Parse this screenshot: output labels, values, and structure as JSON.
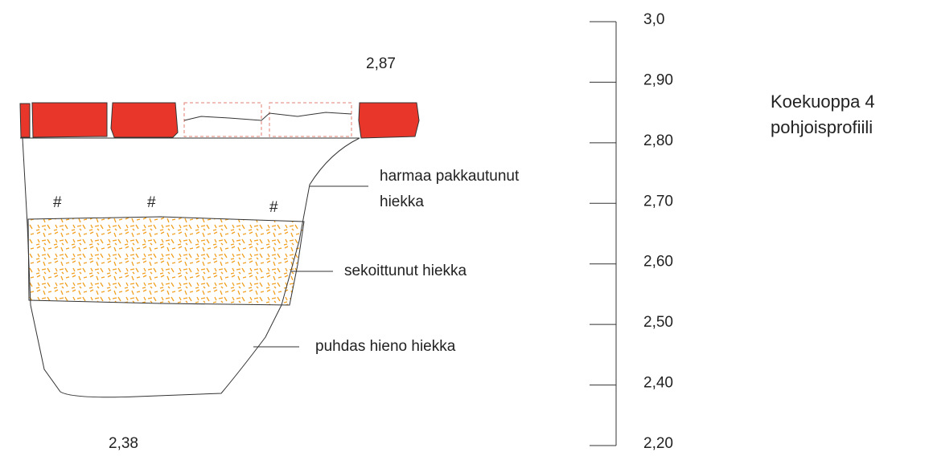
{
  "title": [
    "Koekuoppa 4",
    "pohjoisprofiili"
  ],
  "scale": {
    "labels": [
      "3,0",
      "2,90",
      "2,80",
      "2,70",
      "2,60",
      "2,50",
      "2,40",
      "2,20"
    ]
  },
  "elevations": {
    "top": "2,87",
    "bottom": "2,38"
  },
  "layers": [
    {
      "label": [
        "harmaa pakkautunut",
        "hiekka"
      ]
    },
    {
      "label": [
        "sekoittunut hiekka"
      ]
    },
    {
      "label": [
        "puhdas hieno hiekka"
      ]
    }
  ],
  "markers": [
    "#",
    "#",
    "#"
  ]
}
